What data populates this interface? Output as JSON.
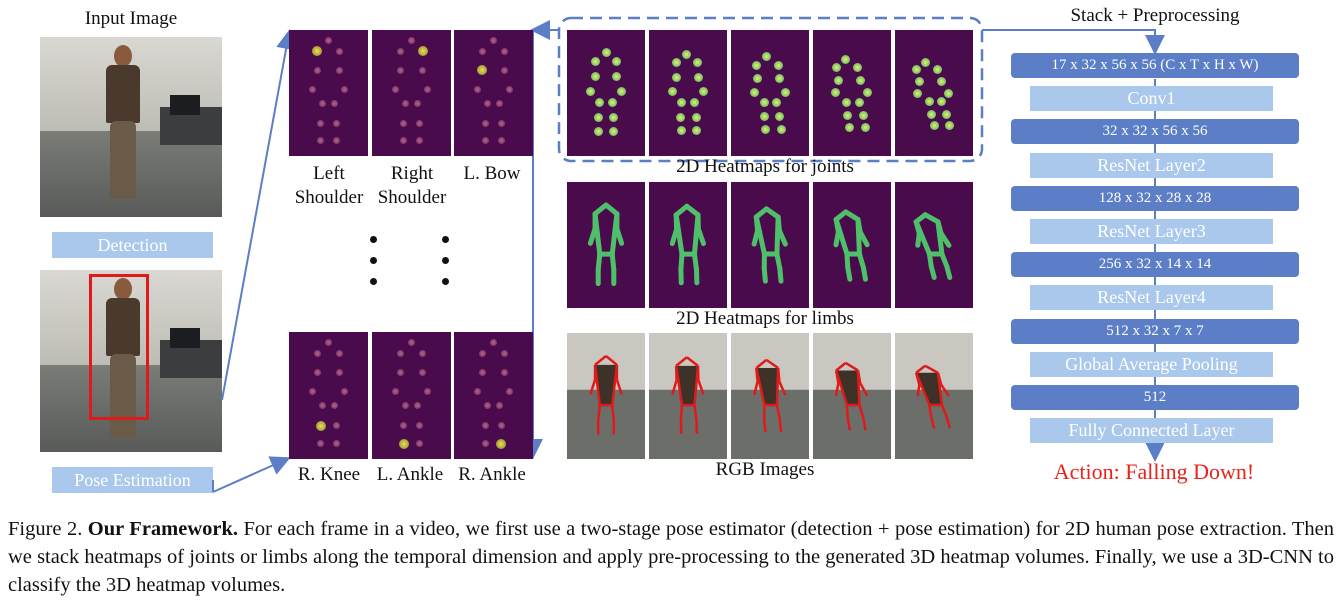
{
  "left_column": {
    "input_image_label": "Input Image",
    "detection_label": "Detection",
    "pose_estimation_label": "Pose Estimation"
  },
  "heatmap_column": {
    "top_labels": [
      {
        "line1": "Left",
        "line2": "Shoulder"
      },
      {
        "line1": "Right",
        "line2": "Shoulder"
      },
      {
        "line1": "L. Bow",
        "line2": ""
      }
    ],
    "bottom_labels": [
      "R. Knee",
      "L. Ankle",
      "R. Ankle"
    ]
  },
  "sequence_panel": {
    "joints_label": "2D Heatmaps for joints",
    "limbs_label": "2D Heatmaps for limbs",
    "rgb_label": "RGB Images"
  },
  "network": {
    "title": "Stack + Preprocessing",
    "blocks": [
      {
        "kind": "shape",
        "text": "17 x 32 x 56 x 56 (C x T x H x W)"
      },
      {
        "kind": "layer",
        "text": "Conv1"
      },
      {
        "kind": "shape",
        "text": "32 x 32 x 56 x 56"
      },
      {
        "kind": "layer",
        "text": "ResNet Layer2"
      },
      {
        "kind": "shape",
        "text": "128 x 32 x 28 x 28"
      },
      {
        "kind": "layer",
        "text": "ResNet Layer3"
      },
      {
        "kind": "shape",
        "text": "256 x 32 x 14 x 14"
      },
      {
        "kind": "layer",
        "text": "ResNet Layer4"
      },
      {
        "kind": "shape",
        "text": "512 x 32 x 7 x 7"
      },
      {
        "kind": "layer",
        "text": "Global Average Pooling"
      },
      {
        "kind": "shape",
        "text": "512"
      },
      {
        "kind": "layer",
        "text": "Fully Connected Layer"
      }
    ],
    "action_label": "Action: Falling Down!"
  },
  "caption": {
    "prefix": "Figure 2.",
    "title": "Our Framework.",
    "body": "For each frame in a video, we first use a two-stage pose estimator (detection + pose estimation) for 2D human pose extraction. Then we stack heatmaps of joints or limbs along the temporal dimension and apply pre-processing to the generated 3D heatmap volumes. Finally, we use a 3D-CNN to classify the 3D heatmap volumes."
  },
  "colors": {
    "heatmap_bg": "#4a0b4c",
    "shape_box": "#5b7ec6",
    "layer_box": "#a9c8ec",
    "action_text": "#e8231b",
    "arrow": "#5b7ec6",
    "detection_box": "#e01a1a"
  }
}
